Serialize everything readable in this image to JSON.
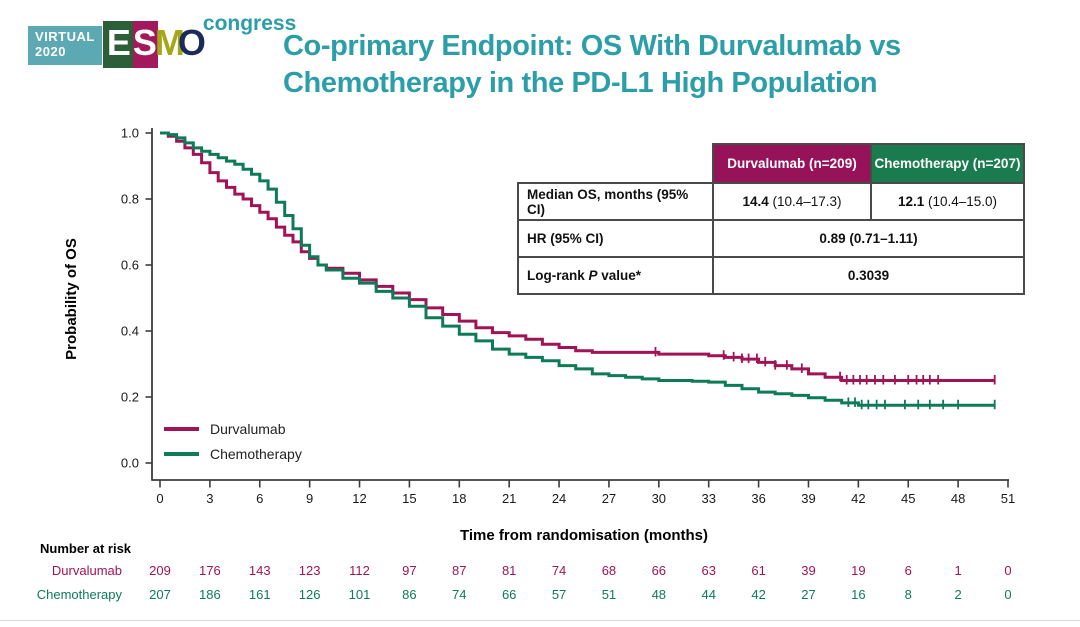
{
  "slide": {
    "logo": {
      "virtual_line1": "VIRTUAL",
      "virtual_line2": "2020",
      "esmo_letters": [
        "E",
        "S",
        "M",
        "O"
      ],
      "congress": "congress"
    },
    "title_line1": "Co-primary Endpoint: OS With Durvalumab vs",
    "title_line2": "Chemotherapy in the PD-L1 High Population",
    "title_color": "#2B9EA8"
  },
  "stats_table": {
    "col_headers": [
      {
        "label": "Durvalumab (n=209)",
        "bg": "#96135A"
      },
      {
        "label": "Chemotherapy (n=207)",
        "bg": "#1A7B4F"
      }
    ],
    "rows": [
      {
        "label": "Median OS, months (95% CI)",
        "durvalumab_bold": "14.4",
        "durvalumab_rest": " (10.4–17.3)",
        "chemotherapy_bold": "12.1",
        "chemotherapy_rest": " (10.4–15.0)"
      },
      {
        "label": "HR (95% CI)",
        "value": "0.89 (0.71–1.11)"
      },
      {
        "label_prefix": "Log-rank ",
        "label_italic": "P",
        "label_suffix": " value*",
        "value": "0.3039"
      }
    ]
  },
  "chart_data": {
    "type": "line",
    "subtype": "kaplan_meier_step",
    "title": "",
    "xlabel": "Time from randomisation (months)",
    "ylabel": "Probability of OS",
    "xlim": [
      0,
      51
    ],
    "ylim": [
      0.0,
      1.0
    ],
    "grid": false,
    "legend_position": "lower_left",
    "xticks": [
      0,
      3,
      6,
      9,
      12,
      15,
      18,
      21,
      24,
      27,
      30,
      33,
      36,
      39,
      42,
      45,
      48,
      51
    ],
    "yticks": [
      0.0,
      0.2,
      0.4,
      0.6,
      0.8,
      1.0
    ],
    "ytick_labels": [
      "0.0",
      "0.2",
      "0.4",
      "0.6",
      "0.8",
      "1.0"
    ],
    "series": [
      {
        "name": "Durvalumab",
        "color": "#A01457",
        "points": [
          [
            0,
            1.0
          ],
          [
            0.5,
            0.99
          ],
          [
            1,
            0.975
          ],
          [
            1.5,
            0.955
          ],
          [
            2,
            0.935
          ],
          [
            2.5,
            0.91
          ],
          [
            3,
            0.88
          ],
          [
            3.5,
            0.855
          ],
          [
            4,
            0.835
          ],
          [
            4.5,
            0.815
          ],
          [
            5,
            0.8
          ],
          [
            5.5,
            0.78
          ],
          [
            6,
            0.76
          ],
          [
            6.5,
            0.74
          ],
          [
            7,
            0.715
          ],
          [
            7.5,
            0.69
          ],
          [
            8,
            0.67
          ],
          [
            8.5,
            0.64
          ],
          [
            9,
            0.62
          ],
          [
            9.5,
            0.6
          ],
          [
            10,
            0.59
          ],
          [
            11,
            0.575
          ],
          [
            12,
            0.555
          ],
          [
            13,
            0.535
          ],
          [
            14,
            0.515
          ],
          [
            15,
            0.495
          ],
          [
            16,
            0.47
          ],
          [
            17,
            0.45
          ],
          [
            18,
            0.43
          ],
          [
            19,
            0.41
          ],
          [
            20,
            0.395
          ],
          [
            21,
            0.385
          ],
          [
            22,
            0.375
          ],
          [
            23,
            0.36
          ],
          [
            24,
            0.35
          ],
          [
            25,
            0.34
          ],
          [
            26,
            0.335
          ],
          [
            30,
            0.33
          ],
          [
            33,
            0.325
          ],
          [
            34,
            0.32
          ],
          [
            35,
            0.315
          ],
          [
            36,
            0.305
          ],
          [
            37,
            0.295
          ],
          [
            38,
            0.285
          ],
          [
            39,
            0.27
          ],
          [
            40,
            0.26
          ],
          [
            41,
            0.25
          ],
          [
            50.2,
            0.25
          ]
        ],
        "censor_months": [
          29.8,
          33.9,
          34.5,
          35,
          35.4,
          35.9,
          36.4,
          37,
          37.7,
          38.6,
          40.9,
          41.3,
          41.7,
          42.1,
          42.5,
          43,
          43.5,
          44.2,
          45,
          45.5,
          45.9,
          46.3,
          46.8,
          50.2
        ]
      },
      {
        "name": "Chemotherapy",
        "color": "#0E7B58",
        "points": [
          [
            0,
            1.0
          ],
          [
            0.5,
            0.995
          ],
          [
            1,
            0.985
          ],
          [
            1.5,
            0.97
          ],
          [
            2,
            0.955
          ],
          [
            2.5,
            0.945
          ],
          [
            3,
            0.935
          ],
          [
            3.5,
            0.925
          ],
          [
            4,
            0.915
          ],
          [
            4.5,
            0.905
          ],
          [
            5,
            0.89
          ],
          [
            5.5,
            0.875
          ],
          [
            6,
            0.855
          ],
          [
            6.5,
            0.83
          ],
          [
            7,
            0.79
          ],
          [
            7.5,
            0.75
          ],
          [
            8,
            0.71
          ],
          [
            8.5,
            0.66
          ],
          [
            9,
            0.625
          ],
          [
            9.5,
            0.6
          ],
          [
            10,
            0.585
          ],
          [
            11,
            0.56
          ],
          [
            12,
            0.545
          ],
          [
            13,
            0.52
          ],
          [
            14,
            0.5
          ],
          [
            15,
            0.475
          ],
          [
            16,
            0.44
          ],
          [
            17,
            0.415
          ],
          [
            18,
            0.39
          ],
          [
            19,
            0.37
          ],
          [
            20,
            0.345
          ],
          [
            21,
            0.33
          ],
          [
            22,
            0.32
          ],
          [
            23,
            0.31
          ],
          [
            24,
            0.295
          ],
          [
            25,
            0.285
          ],
          [
            26,
            0.27
          ],
          [
            27,
            0.265
          ],
          [
            28,
            0.26
          ],
          [
            29,
            0.255
          ],
          [
            30,
            0.25
          ],
          [
            32,
            0.248
          ],
          [
            33,
            0.245
          ],
          [
            34,
            0.235
          ],
          [
            35,
            0.225
          ],
          [
            36,
            0.215
          ],
          [
            37,
            0.21
          ],
          [
            38,
            0.205
          ],
          [
            39,
            0.198
          ],
          [
            40,
            0.19
          ],
          [
            41,
            0.182
          ],
          [
            42,
            0.175
          ],
          [
            50.2,
            0.175
          ]
        ],
        "censor_months": [
          41.4,
          41.8,
          42.2,
          42.6,
          43.1,
          43.6,
          44.8,
          45.6,
          46.3,
          47.1,
          48,
          50.2
        ]
      }
    ]
  },
  "number_at_risk": {
    "header": "Number at risk",
    "months": [
      0,
      3,
      6,
      9,
      12,
      15,
      18,
      21,
      24,
      27,
      30,
      33,
      36,
      39,
      42,
      45,
      48,
      51
    ],
    "rows": [
      {
        "name": "Durvalumab",
        "color": "#A01457",
        "counts": [
          209,
          176,
          143,
          123,
          112,
          97,
          87,
          81,
          74,
          68,
          66,
          63,
          61,
          39,
          19,
          6,
          1,
          0
        ]
      },
      {
        "name": "Chemotherapy",
        "color": "#0E7B58",
        "counts": [
          207,
          186,
          161,
          126,
          101,
          86,
          74,
          66,
          57,
          51,
          48,
          44,
          42,
          27,
          16,
          8,
          2,
          0
        ]
      }
    ]
  }
}
